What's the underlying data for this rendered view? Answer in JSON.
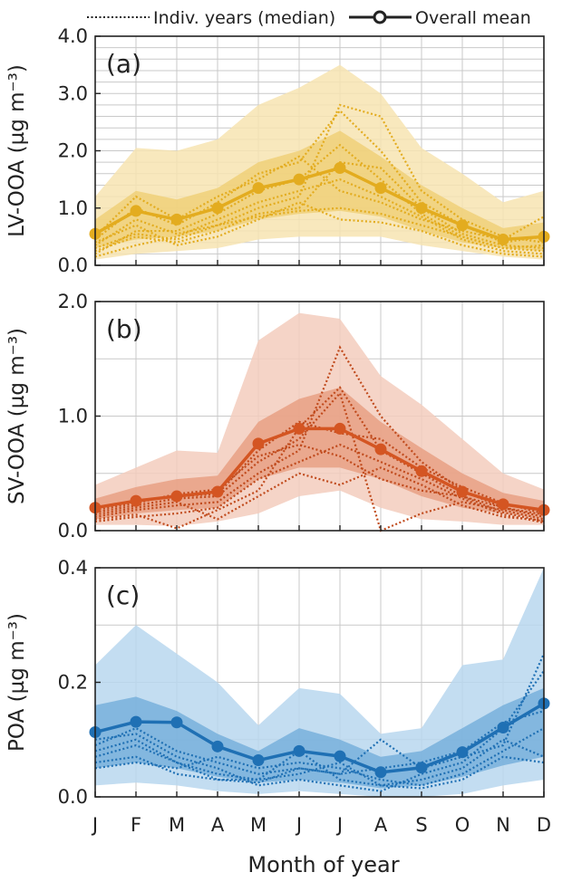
{
  "legend": {
    "indiv_label": "Indiv. years (median)",
    "mean_label": "Overall mean"
  },
  "xlabel": "Month of year",
  "months": [
    "J",
    "F",
    "M",
    "A",
    "M",
    "J",
    "J",
    "A",
    "S",
    "O",
    "N",
    "D"
  ],
  "chart_data": [
    {
      "type": "line",
      "panel_label": "(a)",
      "ylabel": "LV-OOA (µg m⁻³)",
      "ylim": [
        0,
        4
      ],
      "yticks": [
        0,
        1,
        2,
        3,
        4
      ],
      "ytick_labels": [
        "0.0",
        "1.0",
        "2.0",
        "3.0",
        "4.0"
      ],
      "minor_gridlines": true,
      "colors": {
        "mean": "#e3ac1f",
        "band_inner": "#efcd70",
        "band_outer": "#f7e4b2",
        "indiv": "#e3ac1f"
      },
      "categories": [
        "J",
        "F",
        "M",
        "A",
        "M",
        "J",
        "J",
        "A",
        "S",
        "O",
        "N",
        "D"
      ],
      "mean": [
        0.55,
        0.95,
        0.8,
        1.0,
        1.35,
        1.5,
        1.7,
        1.35,
        1.0,
        0.7,
        0.45,
        0.5
      ],
      "band_outer_low": [
        0.1,
        0.2,
        0.25,
        0.3,
        0.45,
        0.5,
        0.5,
        0.5,
        0.35,
        0.25,
        0.15,
        0.1
      ],
      "band_outer_high": [
        1.2,
        2.05,
        2.0,
        2.2,
        2.8,
        3.1,
        3.5,
        3.0,
        2.05,
        1.6,
        1.1,
        1.3
      ],
      "band_inner_low": [
        0.3,
        0.45,
        0.5,
        0.6,
        0.8,
        0.9,
        0.95,
        0.85,
        0.6,
        0.4,
        0.3,
        0.25
      ],
      "band_inner_high": [
        0.8,
        1.3,
        1.15,
        1.35,
        1.8,
        2.0,
        2.35,
        1.9,
        1.4,
        1.0,
        0.65,
        0.75
      ],
      "individual_years": [
        [
          0.3,
          0.55,
          0.45,
          0.7,
          1.0,
          1.2,
          2.8,
          2.6,
          1.3,
          0.8,
          0.5,
          0.4
        ],
        [
          0.45,
          1.0,
          0.7,
          1.1,
          1.6,
          1.8,
          2.7,
          2.0,
          1.1,
          0.7,
          0.4,
          0.5
        ],
        [
          0.2,
          0.6,
          0.6,
          0.9,
          1.3,
          1.5,
          2.1,
          1.5,
          0.9,
          0.5,
          0.3,
          0.25
        ],
        [
          0.5,
          1.2,
          0.8,
          1.2,
          1.5,
          1.9,
          1.3,
          1.1,
          0.8,
          0.6,
          0.45,
          0.85
        ],
        [
          0.15,
          0.35,
          0.5,
          0.8,
          1.1,
          1.3,
          1.5,
          1.2,
          0.85,
          0.45,
          0.25,
          0.2
        ],
        [
          0.25,
          0.5,
          0.4,
          0.6,
          0.9,
          1.0,
          1.8,
          1.7,
          1.0,
          0.55,
          0.35,
          0.3
        ],
        [
          0.35,
          0.8,
          0.55,
          0.7,
          0.85,
          0.95,
          1.0,
          0.9,
          0.7,
          0.5,
          0.3,
          0.35
        ],
        [
          0.4,
          0.7,
          0.35,
          0.5,
          0.8,
          1.1,
          0.8,
          0.75,
          0.6,
          0.35,
          0.2,
          0.15
        ]
      ]
    },
    {
      "type": "line",
      "panel_label": "(b)",
      "ylabel": "SV-OOA (µg m⁻³)",
      "ylim": [
        0,
        2
      ],
      "yticks": [
        0,
        1,
        2
      ],
      "ytick_labels": [
        "0.0",
        "1.0",
        "2.0"
      ],
      "minor_gridlines": false,
      "colors": {
        "mean": "#d45522",
        "band_inner": "#e59a7b",
        "band_outer": "#f3cdbd",
        "indiv": "#c04a1c"
      },
      "categories": [
        "J",
        "F",
        "M",
        "A",
        "M",
        "J",
        "J",
        "A",
        "S",
        "O",
        "N",
        "D"
      ],
      "mean": [
        0.2,
        0.26,
        0.3,
        0.34,
        0.76,
        0.89,
        0.89,
        0.71,
        0.52,
        0.34,
        0.23,
        0.18
      ],
      "band_outer_low": [
        0.05,
        0.05,
        0.04,
        0.08,
        0.15,
        0.3,
        0.35,
        0.2,
        0.1,
        0.08,
        0.05,
        0.05
      ],
      "band_outer_high": [
        0.4,
        0.55,
        0.7,
        0.68,
        1.66,
        1.9,
        1.85,
        1.35,
        1.1,
        0.8,
        0.5,
        0.36
      ],
      "band_inner_low": [
        0.1,
        0.15,
        0.18,
        0.2,
        0.45,
        0.55,
        0.55,
        0.45,
        0.3,
        0.2,
        0.15,
        0.1
      ],
      "band_inner_high": [
        0.28,
        0.38,
        0.45,
        0.48,
        0.95,
        1.15,
        1.25,
        0.95,
        0.72,
        0.5,
        0.33,
        0.26
      ],
      "individual_years": [
        [
          0.12,
          0.18,
          0.22,
          0.25,
          0.5,
          0.7,
          1.6,
          1.0,
          0.6,
          0.35,
          0.2,
          0.12
        ],
        [
          0.16,
          0.22,
          0.28,
          0.3,
          0.6,
          0.8,
          1.2,
          0.0,
          0.15,
          0.25,
          0.18,
          0.1
        ],
        [
          0.1,
          0.14,
          0.02,
          0.18,
          0.35,
          0.9,
          1.25,
          0.7,
          0.5,
          0.3,
          0.16,
          0.08
        ],
        [
          0.2,
          0.26,
          0.3,
          0.32,
          0.7,
          0.95,
          0.85,
          0.8,
          0.55,
          0.38,
          0.24,
          0.15
        ],
        [
          0.08,
          0.12,
          0.15,
          0.2,
          0.45,
          0.6,
          0.75,
          0.6,
          0.45,
          0.28,
          0.14,
          0.07
        ],
        [
          0.14,
          0.2,
          0.25,
          0.1,
          0.3,
          0.5,
          0.4,
          0.55,
          0.4,
          0.22,
          0.12,
          0.09
        ],
        [
          0.18,
          0.24,
          0.32,
          0.36,
          0.65,
          0.75,
          0.65,
          0.45,
          0.35,
          0.3,
          0.2,
          0.14
        ]
      ]
    },
    {
      "type": "line",
      "panel_label": "(c)",
      "ylabel": "POA (µg m⁻³)",
      "ylim": [
        0,
        0.4
      ],
      "yticks": [
        0,
        0.2,
        0.4
      ],
      "ytick_labels": [
        "0.0",
        "0.2",
        "0.4"
      ],
      "minor_gridlines": false,
      "colors": {
        "mean": "#1f70b4",
        "band_inner": "#6ea9d8",
        "band_outer": "#b8d7ee",
        "indiv": "#1f70b4"
      },
      "categories": [
        "J",
        "F",
        "M",
        "A",
        "M",
        "J",
        "J",
        "A",
        "S",
        "O",
        "N",
        "D"
      ],
      "mean": [
        0.113,
        0.131,
        0.13,
        0.088,
        0.064,
        0.08,
        0.071,
        0.043,
        0.051,
        0.078,
        0.121,
        0.163
      ],
      "band_outer_low": [
        0.02,
        0.025,
        0.02,
        0.01,
        0.005,
        0.01,
        0.005,
        0.0,
        0.0,
        0.005,
        0.02,
        0.03
      ],
      "band_outer_high": [
        0.23,
        0.3,
        0.25,
        0.2,
        0.125,
        0.19,
        0.18,
        0.11,
        0.12,
        0.23,
        0.24,
        0.4
      ],
      "band_inner_low": [
        0.05,
        0.06,
        0.05,
        0.035,
        0.025,
        0.03,
        0.025,
        0.015,
        0.02,
        0.035,
        0.055,
        0.07
      ],
      "band_inner_high": [
        0.16,
        0.175,
        0.15,
        0.11,
        0.08,
        0.12,
        0.1,
        0.07,
        0.08,
        0.12,
        0.16,
        0.19
      ],
      "individual_years": [
        [
          0.09,
          0.12,
          0.08,
          0.06,
          0.04,
          0.05,
          0.04,
          0.1,
          0.05,
          0.07,
          0.09,
          0.25
        ],
        [
          0.07,
          0.09,
          0.06,
          0.04,
          0.03,
          0.08,
          0.03,
          0.02,
          0.03,
          0.05,
          0.1,
          0.07
        ],
        [
          0.05,
          0.06,
          0.05,
          0.07,
          0.05,
          0.06,
          0.05,
          0.03,
          0.02,
          0.04,
          0.08,
          0.12
        ],
        [
          0.1,
          0.11,
          0.07,
          0.05,
          0.02,
          0.03,
          0.02,
          0.01,
          0.04,
          0.06,
          0.12,
          0.22
        ],
        [
          0.08,
          0.1,
          0.06,
          0.03,
          0.03,
          0.04,
          0.06,
          0.02,
          0.015,
          0.03,
          0.07,
          0.06
        ],
        [
          0.06,
          0.07,
          0.04,
          0.03,
          0.025,
          0.05,
          0.04,
          0.05,
          0.06,
          0.08,
          0.13,
          0.15
        ]
      ]
    }
  ]
}
